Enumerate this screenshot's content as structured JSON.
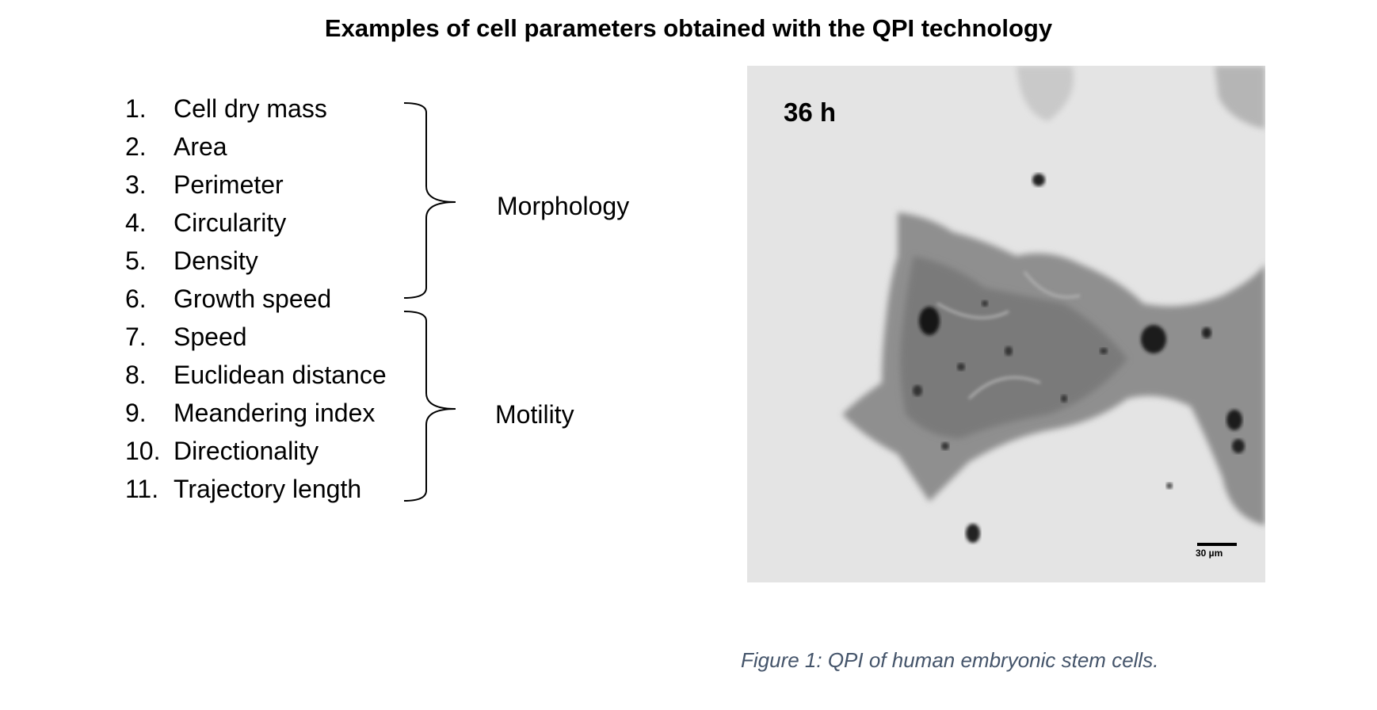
{
  "title": "Examples of cell parameters obtained with the QPI technology",
  "parameters": [
    {
      "num": "1.",
      "label": "Cell dry mass"
    },
    {
      "num": "2.",
      "label": "Area"
    },
    {
      "num": "3.",
      "label": "Perimeter"
    },
    {
      "num": "4.",
      "label": "Circularity"
    },
    {
      "num": "5.",
      "label": "Density"
    },
    {
      "num": "6.",
      "label": "Growth speed"
    },
    {
      "num": "7.",
      "label": "Speed"
    },
    {
      "num": "8.",
      "label": "Euclidean distance"
    },
    {
      "num": "9.",
      "label": "Meandering index"
    },
    {
      "num": "10.",
      "label": "Directionality"
    },
    {
      "num": "11.",
      "label": "Trajectory length"
    }
  ],
  "groups": {
    "morphology": "Morphology",
    "motility": "Motility"
  },
  "image": {
    "time_label": "36 h",
    "scale_label": "30 µm"
  },
  "caption": "Figure 1: QPI of human embryonic stem cells."
}
